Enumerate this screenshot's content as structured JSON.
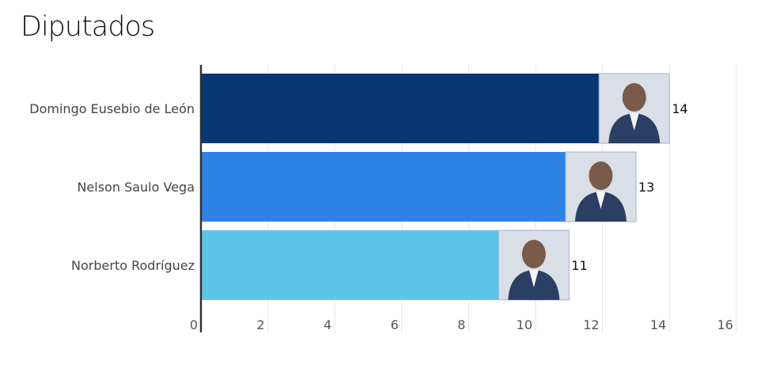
{
  "chart_data": {
    "type": "bar",
    "orientation": "horizontal",
    "title": "Diputados",
    "categories": [
      "Domingo Eusebio de León",
      "Nelson Saulo Vega",
      "Norberto Rodríguez"
    ],
    "values": [
      14,
      13,
      11
    ],
    "colors": [
      "#063772",
      "#2f82e5",
      "#5cc4e6"
    ],
    "xlim": [
      0,
      16
    ],
    "xticks": [
      0,
      2,
      4,
      6,
      8,
      10,
      12,
      14,
      16
    ],
    "grid": true,
    "legend": "none"
  }
}
